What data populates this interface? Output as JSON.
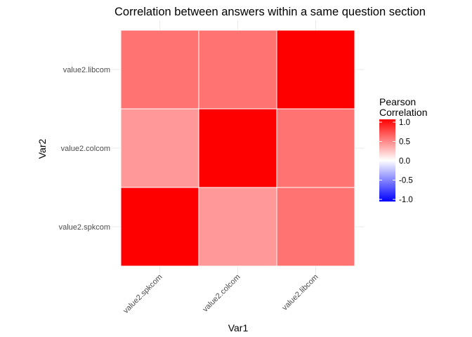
{
  "chart_data": {
    "type": "heatmap",
    "title": "Correlation between answers within a same question section",
    "xlabel": "Var1",
    "ylabel": "Var2",
    "x_categories": [
      "value2.spkcom",
      "value2.colcom",
      "value2.libcom"
    ],
    "y_categories": [
      "value2.spkcom",
      "value2.colcom",
      "value2.libcom"
    ],
    "cells": [
      {
        "x": "value2.spkcom",
        "y": "value2.spkcom",
        "value": 1.0
      },
      {
        "x": "value2.colcom",
        "y": "value2.spkcom",
        "value": 0.4
      },
      {
        "x": "value2.libcom",
        "y": "value2.spkcom",
        "value": 0.55
      },
      {
        "x": "value2.spkcom",
        "y": "value2.colcom",
        "value": 0.4
      },
      {
        "x": "value2.colcom",
        "y": "value2.colcom",
        "value": 1.0
      },
      {
        "x": "value2.libcom",
        "y": "value2.colcom",
        "value": 0.55
      },
      {
        "x": "value2.spkcom",
        "y": "value2.libcom",
        "value": 0.55
      },
      {
        "x": "value2.colcom",
        "y": "value2.libcom",
        "value": 0.55
      },
      {
        "x": "value2.libcom",
        "y": "value2.libcom",
        "value": 1.0
      }
    ],
    "color_scale": {
      "low": "#0000FF",
      "mid": "#FFFFFF",
      "high": "#FF0000",
      "limits": [
        -1,
        1
      ]
    },
    "legend": {
      "title_lines": [
        "Pearson",
        "Correlation"
      ],
      "ticks": [
        "1.0",
        "0.5",
        "0.0",
        "-0.5",
        "-1.0"
      ],
      "tick_values": [
        1.0,
        0.5,
        0.0,
        -0.5,
        -1.0
      ],
      "position": "right"
    },
    "grid": true,
    "x_tick_angle": 45
  }
}
